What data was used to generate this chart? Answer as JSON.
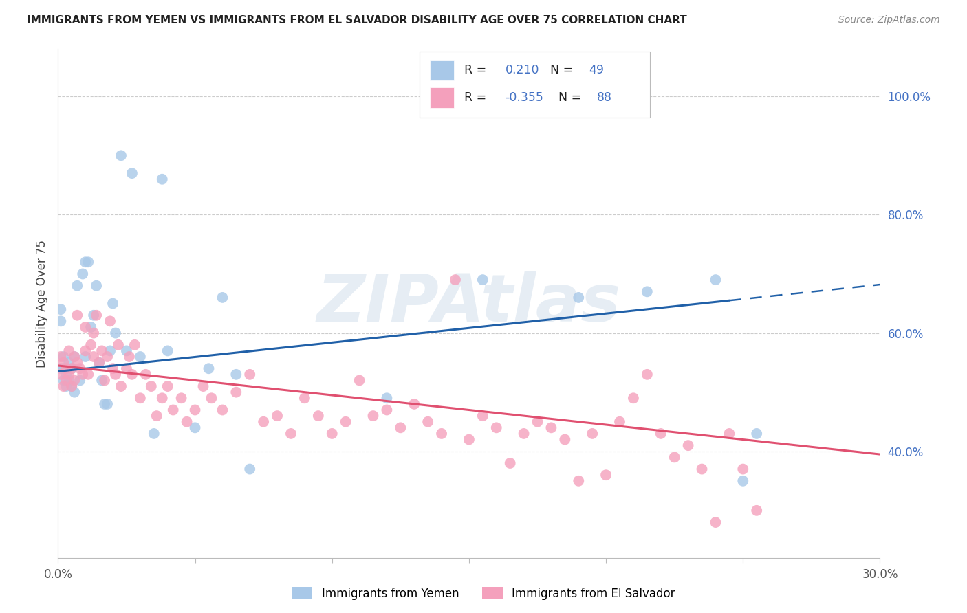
{
  "title": "IMMIGRANTS FROM YEMEN VS IMMIGRANTS FROM EL SALVADOR DISABILITY AGE OVER 75 CORRELATION CHART",
  "source": "Source: ZipAtlas.com",
  "ylabel": "Disability Age Over 75",
  "xmin": 0.0,
  "xmax": 0.3,
  "ymin": 0.22,
  "ymax": 1.08,
  "yticks": [
    0.4,
    0.6,
    0.8,
    1.0
  ],
  "ytick_labels": [
    "40.0%",
    "60.0%",
    "80.0%",
    "100.0%"
  ],
  "blue_color": "#a8c8e8",
  "pink_color": "#f4a0bc",
  "blue_line_color": "#2060a8",
  "pink_line_color": "#e05070",
  "r_label_color": "#333333",
  "r_value_color": "#2060a8",
  "n_label_color": "#333333",
  "n_value_color": "#2060a8",
  "watermark": "ZIPAtlas",
  "watermark_color": "#c8d8e8",
  "legend_blue_r_label": "R = ",
  "legend_blue_r_value": " 0.210",
  "legend_blue_n_label": "  N = ",
  "legend_blue_n_value": "49",
  "legend_pink_r_label": "R = ",
  "legend_pink_r_value": "-0.355",
  "legend_pink_n_label": "  N = ",
  "legend_pink_n_value": "88",
  "yemen_x": [
    0.001,
    0.001,
    0.001,
    0.002,
    0.002,
    0.002,
    0.003,
    0.003,
    0.004,
    0.004,
    0.005,
    0.005,
    0.006,
    0.006,
    0.007,
    0.008,
    0.009,
    0.01,
    0.01,
    0.011,
    0.012,
    0.013,
    0.014,
    0.015,
    0.016,
    0.017,
    0.018,
    0.019,
    0.02,
    0.021,
    0.023,
    0.025,
    0.027,
    0.03,
    0.035,
    0.038,
    0.04,
    0.05,
    0.055,
    0.06,
    0.065,
    0.07,
    0.12,
    0.155,
    0.19,
    0.215,
    0.24,
    0.25,
    0.255
  ],
  "yemen_y": [
    0.54,
    0.62,
    0.64,
    0.52,
    0.54,
    0.56,
    0.51,
    0.53,
    0.52,
    0.55,
    0.51,
    0.54,
    0.5,
    0.56,
    0.68,
    0.52,
    0.7,
    0.72,
    0.56,
    0.72,
    0.61,
    0.63,
    0.68,
    0.55,
    0.52,
    0.48,
    0.48,
    0.57,
    0.65,
    0.6,
    0.9,
    0.57,
    0.87,
    0.56,
    0.43,
    0.86,
    0.57,
    0.44,
    0.54,
    0.66,
    0.53,
    0.37,
    0.49,
    0.69,
    0.66,
    0.67,
    0.69,
    0.35,
    0.43
  ],
  "salvador_x": [
    0.001,
    0.001,
    0.002,
    0.002,
    0.003,
    0.003,
    0.004,
    0.004,
    0.005,
    0.005,
    0.006,
    0.006,
    0.007,
    0.007,
    0.008,
    0.009,
    0.01,
    0.01,
    0.011,
    0.012,
    0.013,
    0.013,
    0.014,
    0.015,
    0.016,
    0.017,
    0.018,
    0.019,
    0.02,
    0.021,
    0.022,
    0.023,
    0.025,
    0.026,
    0.027,
    0.028,
    0.03,
    0.032,
    0.034,
    0.036,
    0.038,
    0.04,
    0.042,
    0.045,
    0.047,
    0.05,
    0.053,
    0.056,
    0.06,
    0.065,
    0.07,
    0.075,
    0.08,
    0.085,
    0.09,
    0.095,
    0.1,
    0.105,
    0.11,
    0.115,
    0.12,
    0.125,
    0.13,
    0.135,
    0.14,
    0.145,
    0.15,
    0.155,
    0.16,
    0.165,
    0.17,
    0.175,
    0.18,
    0.185,
    0.19,
    0.195,
    0.2,
    0.205,
    0.21,
    0.215,
    0.22,
    0.225,
    0.23,
    0.235,
    0.24,
    0.245,
    0.25,
    0.255
  ],
  "salvador_y": [
    0.53,
    0.56,
    0.51,
    0.55,
    0.52,
    0.54,
    0.53,
    0.57,
    0.51,
    0.54,
    0.56,
    0.52,
    0.63,
    0.55,
    0.54,
    0.53,
    0.57,
    0.61,
    0.53,
    0.58,
    0.56,
    0.6,
    0.63,
    0.55,
    0.57,
    0.52,
    0.56,
    0.62,
    0.54,
    0.53,
    0.58,
    0.51,
    0.54,
    0.56,
    0.53,
    0.58,
    0.49,
    0.53,
    0.51,
    0.46,
    0.49,
    0.51,
    0.47,
    0.49,
    0.45,
    0.47,
    0.51,
    0.49,
    0.47,
    0.5,
    0.53,
    0.45,
    0.46,
    0.43,
    0.49,
    0.46,
    0.43,
    0.45,
    0.52,
    0.46,
    0.47,
    0.44,
    0.48,
    0.45,
    0.43,
    0.69,
    0.42,
    0.46,
    0.44,
    0.38,
    0.43,
    0.45,
    0.44,
    0.42,
    0.35,
    0.43,
    0.36,
    0.45,
    0.49,
    0.53,
    0.43,
    0.39,
    0.41,
    0.37,
    0.28,
    0.43,
    0.37,
    0.3
  ]
}
